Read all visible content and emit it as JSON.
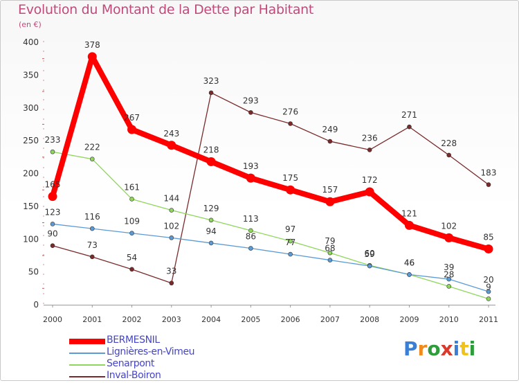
{
  "title": "Evolution du Montant de la Dette par Habitant",
  "subtitle": "(en €)",
  "logo": {
    "text": "Proxiti"
  },
  "chart_data": {
    "type": "line",
    "title": "Evolution du Montant de la Dette par Habitant",
    "ylabel": "(en €)",
    "x": [
      "2000",
      "2001",
      "2002",
      "2003",
      "2004",
      "2005",
      "2006",
      "2007",
      "2008",
      "2009",
      "2010",
      "2011"
    ],
    "ylim": [
      0,
      400
    ],
    "yticks": [
      0,
      50,
      100,
      150,
      200,
      250,
      300,
      350,
      400
    ],
    "grid": false,
    "legend": "bottom-left",
    "series": [
      {
        "name": "BERMESNIL",
        "color": "#ff0000",
        "values": [
          165,
          378,
          267,
          243,
          218,
          193,
          175,
          157,
          172,
          121,
          102,
          85
        ]
      },
      {
        "name": "Lignières-en-Vimeu",
        "color": "#5b9bd5",
        "values": [
          123,
          116,
          109,
          102,
          94,
          86,
          77,
          68,
          59,
          46,
          39,
          20
        ]
      },
      {
        "name": "Senarpont",
        "color": "#8ed65c",
        "values": [
          233,
          222,
          161,
          144,
          129,
          113,
          97,
          79,
          60,
          46,
          28,
          9
        ]
      },
      {
        "name": "Inval-Boiron",
        "color": "#7a2a2a",
        "values": [
          90,
          73,
          54,
          33,
          323,
          293,
          276,
          249,
          236,
          271,
          228,
          183
        ]
      }
    ]
  }
}
